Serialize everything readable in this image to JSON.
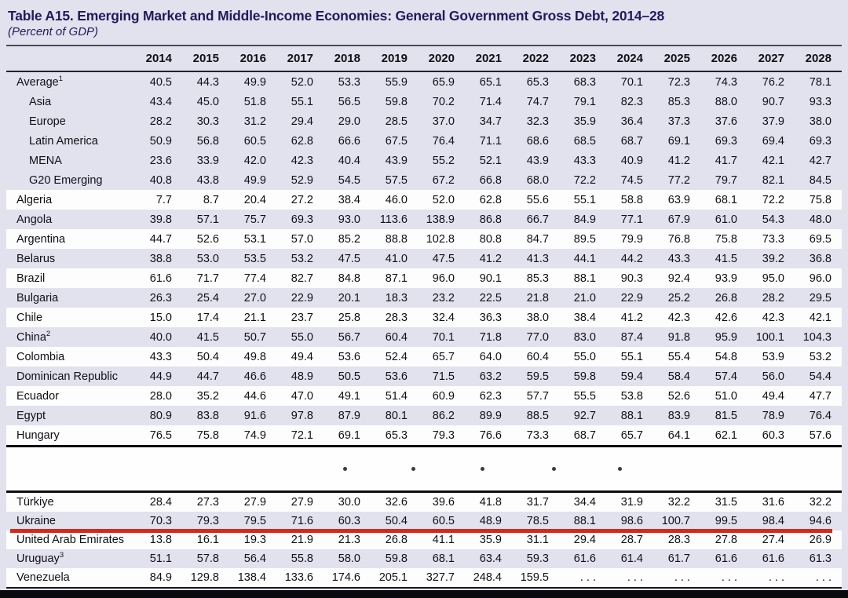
{
  "title": "Table A15. Emerging Market and Middle-Income Economies: General Government Gross Debt, 2014–28",
  "subtitle": "(Percent of GDP)",
  "years": [
    "2014",
    "2015",
    "2016",
    "2017",
    "2018",
    "2019",
    "2020",
    "2021",
    "2022",
    "2023",
    "2024",
    "2025",
    "2026",
    "2027",
    "2028"
  ],
  "colors": {
    "title_navy": "#23195c",
    "row_lavender": "#e2e1ee",
    "row_white": "#fdfdfe",
    "highlight_red": "#d8281b"
  },
  "omitted_rows_indicator": {
    "dot": "•",
    "count": 5
  },
  "highlight_note": {
    "row": "Ukraine",
    "style": "red-underline"
  },
  "top_rows": [
    {
      "label": "Average",
      "sup": "1",
      "indent": false,
      "shade": "lav",
      "values": [
        "40.5",
        "44.3",
        "49.9",
        "52.0",
        "53.3",
        "55.9",
        "65.9",
        "65.1",
        "65.3",
        "68.3",
        "70.1",
        "72.3",
        "74.3",
        "76.2",
        "78.1"
      ]
    },
    {
      "label": "Asia",
      "sup": "",
      "indent": true,
      "shade": "lav",
      "values": [
        "43.4",
        "45.0",
        "51.8",
        "55.1",
        "56.5",
        "59.8",
        "70.2",
        "71.4",
        "74.7",
        "79.1",
        "82.3",
        "85.3",
        "88.0",
        "90.7",
        "93.3"
      ]
    },
    {
      "label": "Europe",
      "sup": "",
      "indent": true,
      "shade": "lav",
      "values": [
        "28.2",
        "30.3",
        "31.2",
        "29.4",
        "29.0",
        "28.5",
        "37.0",
        "34.7",
        "32.3",
        "35.9",
        "36.4",
        "37.3",
        "37.6",
        "37.9",
        "38.0"
      ]
    },
    {
      "label": "Latin America",
      "sup": "",
      "indent": true,
      "shade": "lav",
      "values": [
        "50.9",
        "56.8",
        "60.5",
        "62.8",
        "66.6",
        "67.5",
        "76.4",
        "71.1",
        "68.6",
        "68.5",
        "68.7",
        "69.1",
        "69.3",
        "69.4",
        "69.3"
      ]
    },
    {
      "label": "MENA",
      "sup": "",
      "indent": true,
      "shade": "lav",
      "values": [
        "23.6",
        "33.9",
        "42.0",
        "42.3",
        "40.4",
        "43.9",
        "55.2",
        "52.1",
        "43.9",
        "43.3",
        "40.9",
        "41.2",
        "41.7",
        "42.1",
        "42.7"
      ]
    },
    {
      "label": "G20 Emerging",
      "sup": "",
      "indent": true,
      "shade": "lav",
      "values": [
        "40.8",
        "43.8",
        "49.9",
        "52.9",
        "54.5",
        "57.5",
        "67.2",
        "66.8",
        "68.0",
        "72.2",
        "74.5",
        "77.2",
        "79.7",
        "82.1",
        "84.5"
      ]
    },
    {
      "label": "Algeria",
      "sup": "",
      "indent": false,
      "shade": "white",
      "values": [
        "7.7",
        "8.7",
        "20.4",
        "27.2",
        "38.4",
        "46.0",
        "52.0",
        "62.8",
        "55.6",
        "55.1",
        "58.8",
        "63.9",
        "68.1",
        "72.2",
        "75.8"
      ]
    },
    {
      "label": "Angola",
      "sup": "",
      "indent": false,
      "shade": "lav",
      "values": [
        "39.8",
        "57.1",
        "75.7",
        "69.3",
        "93.0",
        "113.6",
        "138.9",
        "86.8",
        "66.7",
        "84.9",
        "77.1",
        "67.9",
        "61.0",
        "54.3",
        "48.0"
      ]
    },
    {
      "label": "Argentina",
      "sup": "",
      "indent": false,
      "shade": "white",
      "values": [
        "44.7",
        "52.6",
        "53.1",
        "57.0",
        "85.2",
        "88.8",
        "102.8",
        "80.8",
        "84.7",
        "89.5",
        "79.9",
        "76.8",
        "75.8",
        "73.3",
        "69.5"
      ]
    },
    {
      "label": "Belarus",
      "sup": "",
      "indent": false,
      "shade": "lav",
      "values": [
        "38.8",
        "53.0",
        "53.5",
        "53.2",
        "47.5",
        "41.0",
        "47.5",
        "41.2",
        "41.3",
        "44.1",
        "44.2",
        "43.3",
        "41.5",
        "39.2",
        "36.8"
      ]
    },
    {
      "label": "Brazil",
      "sup": "",
      "indent": false,
      "shade": "white",
      "values": [
        "61.6",
        "71.7",
        "77.4",
        "82.7",
        "84.8",
        "87.1",
        "96.0",
        "90.1",
        "85.3",
        "88.1",
        "90.3",
        "92.4",
        "93.9",
        "95.0",
        "96.0"
      ]
    },
    {
      "label": "Bulgaria",
      "sup": "",
      "indent": false,
      "shade": "lav",
      "values": [
        "26.3",
        "25.4",
        "27.0",
        "22.9",
        "20.1",
        "18.3",
        "23.2",
        "22.5",
        "21.8",
        "21.0",
        "22.9",
        "25.2",
        "26.8",
        "28.2",
        "29.5"
      ]
    },
    {
      "label": "Chile",
      "sup": "",
      "indent": false,
      "shade": "white",
      "values": [
        "15.0",
        "17.4",
        "21.1",
        "23.7",
        "25.8",
        "28.3",
        "32.4",
        "36.3",
        "38.0",
        "38.4",
        "41.2",
        "42.3",
        "42.6",
        "42.3",
        "42.1"
      ]
    },
    {
      "label": "China",
      "sup": "2",
      "indent": false,
      "shade": "lav",
      "values": [
        "40.0",
        "41.5",
        "50.7",
        "55.0",
        "56.7",
        "60.4",
        "70.1",
        "71.8",
        "77.0",
        "83.0",
        "87.4",
        "91.8",
        "95.9",
        "100.1",
        "104.3"
      ]
    },
    {
      "label": "Colombia",
      "sup": "",
      "indent": false,
      "shade": "white",
      "values": [
        "43.3",
        "50.4",
        "49.8",
        "49.4",
        "53.6",
        "52.4",
        "65.7",
        "64.0",
        "60.4",
        "55.0",
        "55.1",
        "55.4",
        "54.8",
        "53.9",
        "53.2"
      ]
    },
    {
      "label": "Dominican Republic",
      "sup": "",
      "indent": false,
      "shade": "lav",
      "values": [
        "44.9",
        "44.7",
        "46.6",
        "48.9",
        "50.5",
        "53.6",
        "71.5",
        "63.2",
        "59.5",
        "59.8",
        "59.4",
        "58.4",
        "57.4",
        "56.0",
        "54.4"
      ]
    },
    {
      "label": "Ecuador",
      "sup": "",
      "indent": false,
      "shade": "white",
      "values": [
        "28.0",
        "35.2",
        "44.6",
        "47.0",
        "49.1",
        "51.4",
        "60.9",
        "62.3",
        "57.7",
        "55.5",
        "53.8",
        "52.6",
        "51.0",
        "49.4",
        "47.7"
      ]
    },
    {
      "label": "Egypt",
      "sup": "",
      "indent": false,
      "shade": "lav",
      "values": [
        "80.9",
        "83.8",
        "91.6",
        "97.8",
        "87.9",
        "80.1",
        "86.2",
        "89.9",
        "88.5",
        "92.7",
        "88.1",
        "83.9",
        "81.5",
        "78.9",
        "76.4"
      ]
    },
    {
      "label": "Hungary",
      "sup": "",
      "indent": false,
      "shade": "white",
      "values": [
        "76.5",
        "75.8",
        "74.9",
        "72.1",
        "69.1",
        "65.3",
        "79.3",
        "76.6",
        "73.3",
        "68.7",
        "65.7",
        "64.1",
        "62.1",
        "60.3",
        "57.6"
      ]
    }
  ],
  "bottom_rows": [
    {
      "label": "Türkiye",
      "sup": "",
      "indent": false,
      "shade": "white",
      "highlight": false,
      "values": [
        "28.4",
        "27.3",
        "27.9",
        "27.9",
        "30.0",
        "32.6",
        "39.6",
        "41.8",
        "31.7",
        "34.4",
        "31.9",
        "32.2",
        "31.5",
        "31.6",
        "32.2"
      ]
    },
    {
      "label": "Ukraine",
      "sup": "",
      "indent": false,
      "shade": "lav",
      "highlight": true,
      "values": [
        "70.3",
        "79.3",
        "79.5",
        "71.6",
        "60.3",
        "50.4",
        "60.5",
        "48.9",
        "78.5",
        "88.1",
        "98.6",
        "100.7",
        "99.5",
        "98.4",
        "94.6"
      ]
    },
    {
      "label": "United Arab Emirates",
      "sup": "",
      "indent": false,
      "shade": "white",
      "highlight": false,
      "values": [
        "13.8",
        "16.1",
        "19.3",
        "21.9",
        "21.3",
        "26.8",
        "41.1",
        "35.9",
        "31.1",
        "29.4",
        "28.7",
        "28.3",
        "27.8",
        "27.4",
        "26.9"
      ]
    },
    {
      "label": "Uruguay",
      "sup": "3",
      "indent": false,
      "shade": "lav",
      "highlight": false,
      "values": [
        "51.1",
        "57.8",
        "56.4",
        "55.8",
        "58.0",
        "59.8",
        "68.1",
        "63.4",
        "59.3",
        "61.6",
        "61.4",
        "61.7",
        "61.6",
        "61.6",
        "61.3"
      ]
    },
    {
      "label": "Venezuela",
      "sup": "",
      "indent": false,
      "shade": "white",
      "highlight": false,
      "values": [
        "84.9",
        "129.8",
        "138.4",
        "133.6",
        "174.6",
        "205.1",
        "327.7",
        "248.4",
        "159.5",
        ". . .",
        ". . .",
        ". . .",
        ". . .",
        ". . .",
        ". . ."
      ]
    }
  ]
}
